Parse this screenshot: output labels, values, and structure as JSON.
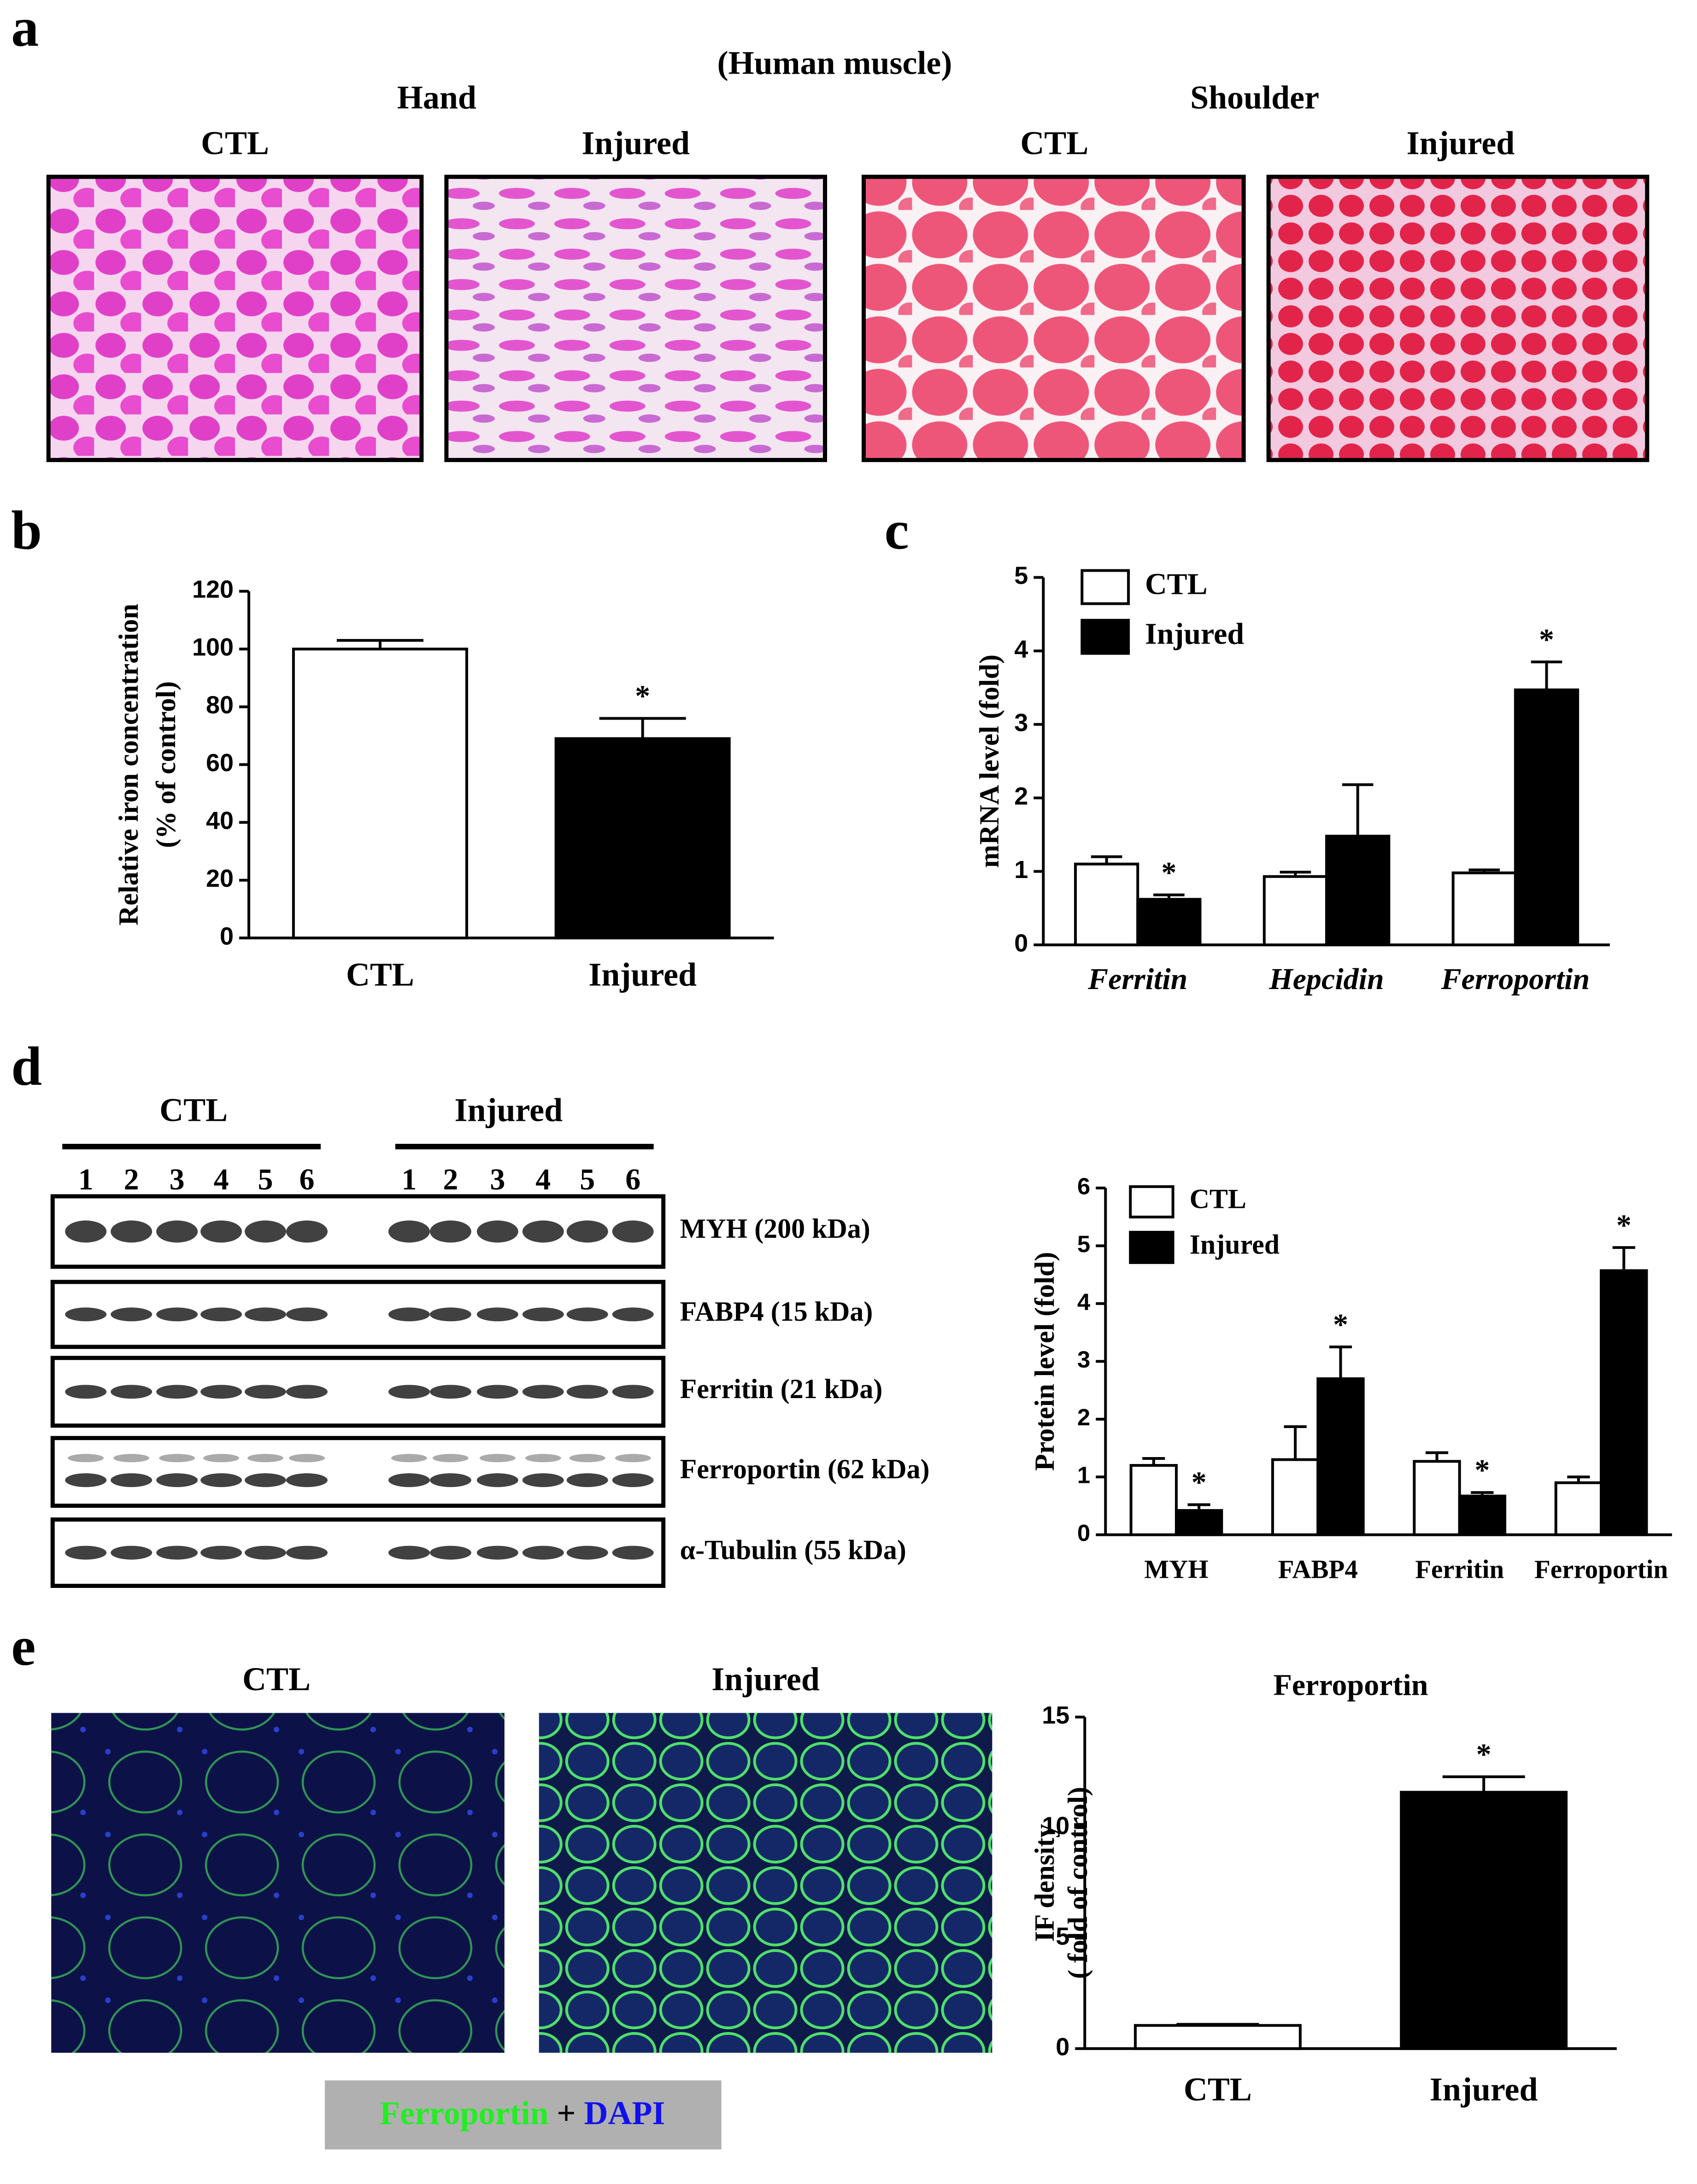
{
  "figure": {
    "panel_letters": [
      "a",
      "b",
      "c",
      "d",
      "e"
    ],
    "a": {
      "heading": "(Human muscle)",
      "groups": [
        "Hand",
        "Shoulder"
      ],
      "captions": [
        "CTL",
        "Injured",
        "CTL",
        "Injured"
      ]
    },
    "d": {
      "groups": [
        "CTL",
        "Injured"
      ],
      "lanes": [
        "1",
        "2",
        "3",
        "4",
        "5",
        "6"
      ],
      "rows": [
        "MYH (200 kDa)",
        "FABP4 (15 kDa)",
        "Ferritin  (21 kDa)",
        "Ferroportin  (62 kDa)",
        "α-Tubulin  (55 kDa)"
      ]
    },
    "e": {
      "captions": [
        "CTL",
        "Injured"
      ],
      "stain": [
        "Ferroportin",
        "+",
        "DAPI"
      ]
    }
  },
  "chart_data": [
    {
      "type": "bar",
      "ylabel": [
        "Relative iron concentration",
        "(% of control)"
      ],
      "categories": [
        "CTL",
        "Injured"
      ],
      "values": [
        100,
        69
      ],
      "errors": [
        3,
        7
      ],
      "significance": [
        null,
        "*"
      ],
      "colors": [
        "#ffffff",
        "#000000"
      ],
      "ylim": [
        0,
        120
      ],
      "yticks": [
        0,
        20,
        40,
        60,
        80,
        100,
        120
      ]
    },
    {
      "type": "grouped_bar",
      "ylabel": "mRNA level (fold)",
      "categories": [
        "Ferritin",
        "Hepcidin",
        "Ferroportin"
      ],
      "italic_categories": true,
      "series": [
        {
          "name": "CTL",
          "color": "#ffffff",
          "values": [
            1.1,
            0.93,
            0.98
          ],
          "errors": [
            0.1,
            0.06,
            0.04
          ],
          "significance": [
            null,
            null,
            null
          ]
        },
        {
          "name": "Injured",
          "color": "#000000",
          "values": [
            0.62,
            1.48,
            3.47
          ],
          "errors": [
            0.06,
            0.7,
            0.38
          ],
          "significance": [
            "*",
            null,
            "*"
          ]
        }
      ],
      "ylim": [
        0,
        5
      ],
      "yticks": [
        0,
        1,
        2,
        3,
        4,
        5
      ],
      "legend": "upper left"
    },
    {
      "type": "grouped_bar",
      "ylabel": "Protein level (fold)",
      "categories": [
        "MYH",
        "FABP4",
        "Ferritin",
        "Ferroportin"
      ],
      "italic_categories": false,
      "series": [
        {
          "name": "CTL",
          "color": "#ffffff",
          "values": [
            1.2,
            1.3,
            1.27,
            0.9
          ],
          "errors": [
            0.12,
            0.57,
            0.15,
            0.1
          ],
          "significance": [
            null,
            null,
            null,
            null
          ]
        },
        {
          "name": "Injured",
          "color": "#000000",
          "values": [
            0.42,
            2.7,
            0.67,
            4.57
          ],
          "errors": [
            0.1,
            0.55,
            0.06,
            0.4
          ],
          "significance": [
            "*",
            "*",
            "*",
            "*"
          ]
        }
      ],
      "ylim": [
        0,
        6
      ],
      "yticks": [
        0,
        1,
        2,
        3,
        4,
        5,
        6
      ],
      "legend": "upper left"
    },
    {
      "type": "bar",
      "title": "Ferroportin",
      "ylabel": [
        "IF density",
        "( fold of control)"
      ],
      "categories": [
        "CTL",
        "Injured"
      ],
      "values": [
        1.05,
        11.6
      ],
      "errors": [
        0.05,
        0.7
      ],
      "significance": [
        null,
        "*"
      ],
      "colors": [
        "#ffffff",
        "#000000"
      ],
      "ylim": [
        0,
        15
      ],
      "yticks": [
        0,
        5,
        10,
        15
      ]
    }
  ]
}
